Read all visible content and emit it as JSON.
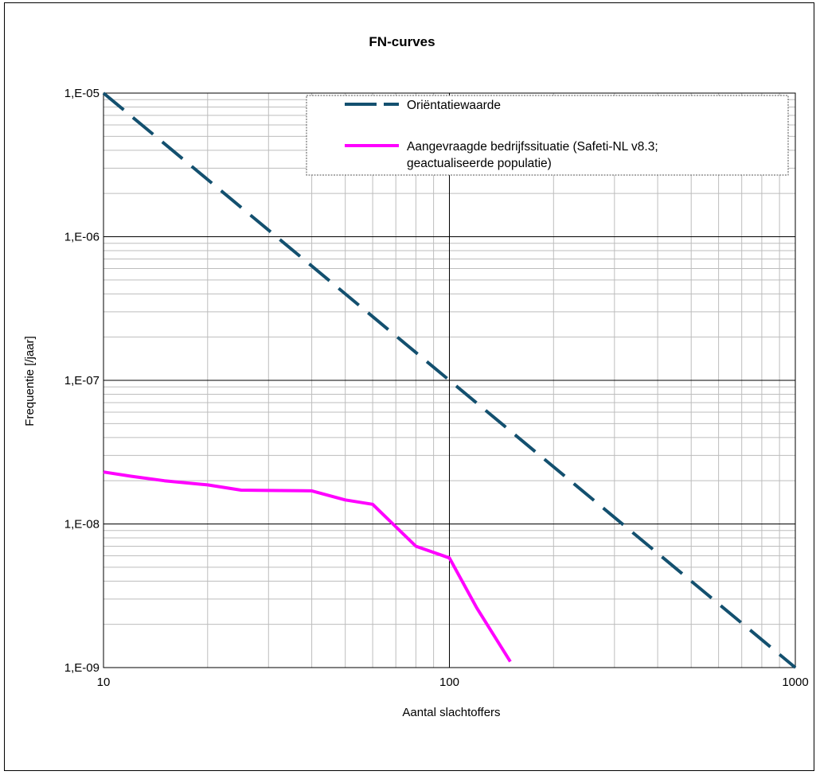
{
  "chart_data": {
    "type": "line",
    "title": "FN-curves",
    "xlabel": "Aantal slachtoffers",
    "ylabel": "Frequentie [/jaar]",
    "x_scale": "log",
    "y_scale": "log",
    "xlim": [
      10,
      1000
    ],
    "ylim": [
      1e-09,
      1e-05
    ],
    "x_ticks": [
      {
        "value": 10,
        "label": "10"
      },
      {
        "value": 100,
        "label": "100"
      },
      {
        "value": 1000,
        "label": "1000"
      }
    ],
    "y_ticks": [
      {
        "value": 1e-05,
        "label": "1,E-05"
      },
      {
        "value": 1e-06,
        "label": "1,E-06"
      },
      {
        "value": 1e-07,
        "label": "1,E-07"
      },
      {
        "value": 1e-08,
        "label": "1,E-08"
      },
      {
        "value": 1e-09,
        "label": "1,E-09"
      }
    ],
    "grid": true,
    "legend_position": "top-right",
    "series": [
      {
        "name": "Oriëntatiewaarde",
        "color": "#13506f",
        "dash": "dashed",
        "x": [
          10,
          1000
        ],
        "y": [
          1e-05,
          1e-09
        ]
      },
      {
        "name": "Aangevraagde bedrijfssituatie (Safeti-NL v8.3; geactualiseerde populatie)",
        "name_lines": [
          "Aangevraagde bedrijfssituatie (Safeti-NL v8.3;",
          "geactualiseerde populatie)"
        ],
        "color": "#ff00ff",
        "dash": "solid",
        "x": [
          10,
          12,
          15,
          20,
          25,
          30,
          40,
          50,
          60,
          80,
          100,
          120,
          150
        ],
        "y": [
          2.3e-08,
          2.15e-08,
          2e-08,
          1.87e-08,
          1.72e-08,
          1.71e-08,
          1.7e-08,
          1.47e-08,
          1.37e-08,
          7e-09,
          5.8e-09,
          2.6e-09,
          1.1e-09
        ]
      }
    ]
  }
}
